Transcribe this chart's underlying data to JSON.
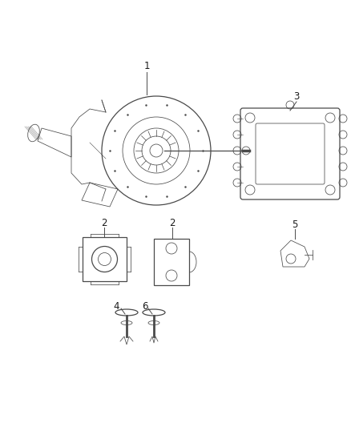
{
  "bg_color": "#ffffff",
  "line_color": "#4a4a4a",
  "text_color": "#1a1a1a",
  "figsize": [
    4.38,
    5.33
  ],
  "dpi": 100,
  "lw_main": 0.9,
  "lw_thin": 0.55,
  "label_fontsize": 8.5
}
